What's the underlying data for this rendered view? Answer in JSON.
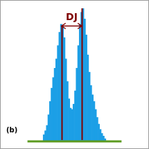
{
  "chart_data": {
    "type": "histogram",
    "color": "#1c9fe6",
    "bins": [
      10,
      11,
      12,
      13,
      14,
      15,
      16,
      17,
      18,
      19,
      20,
      21,
      22,
      23,
      24,
      25,
      26,
      27,
      28,
      29,
      30,
      31,
      32,
      33,
      34,
      35,
      36,
      37,
      38,
      39,
      40,
      41,
      42,
      43,
      44,
      45,
      46,
      47,
      48,
      49,
      50
    ],
    "values": [
      5,
      8,
      12,
      20,
      30,
      40,
      48,
      55,
      62,
      72,
      82,
      88,
      86,
      78,
      62,
      45,
      32,
      25,
      24,
      28,
      38,
      55,
      72,
      88,
      97,
      100,
      92,
      80,
      65,
      52,
      42,
      35,
      30,
      24,
      18,
      13,
      9,
      6,
      4,
      2
    ],
    "xlim": [
      0,
      60
    ],
    "ylim": [
      0,
      100
    ],
    "tick_labels": false,
    "grid": false,
    "panel_label": "(b)",
    "lines": [
      {
        "x": 21.7,
        "top": 87,
        "color": "#800000"
      },
      {
        "x": 34.7,
        "top": 100,
        "color": "#800000"
      }
    ],
    "annotation": {
      "text": "DJ",
      "from": 21.7,
      "to": 34.7,
      "y": 87,
      "color": "#800000"
    }
  }
}
